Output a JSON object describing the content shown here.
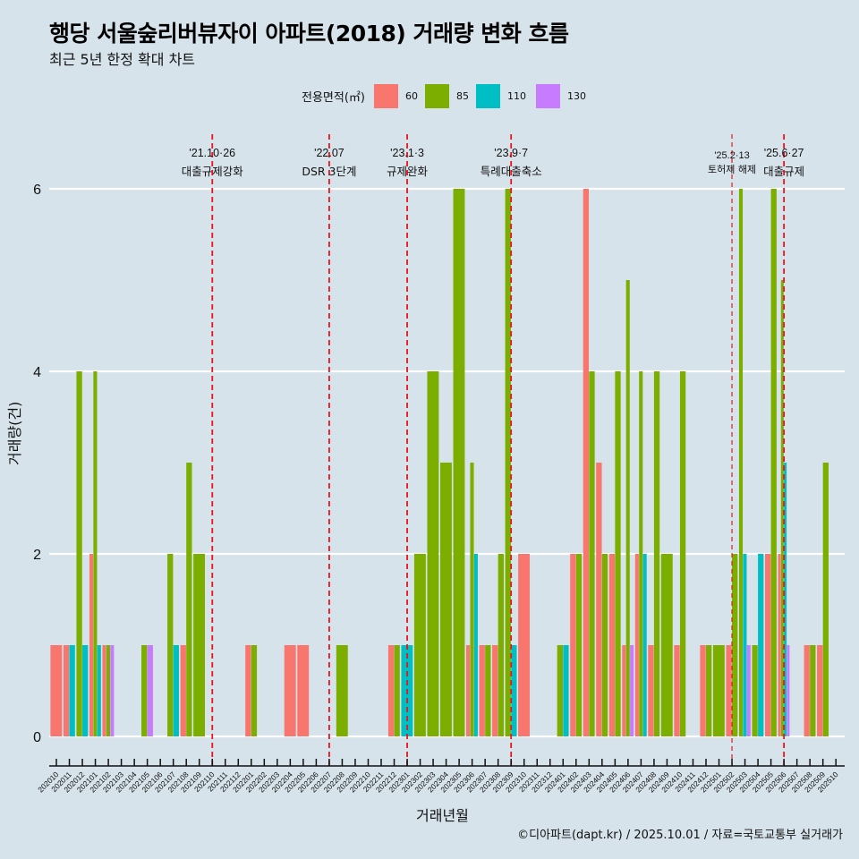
{
  "title": "행당 서울숲리버뷰자이 아파트(2018) 거래량 변화 흐름",
  "subtitle": "최근 5년 한정 확대 차트",
  "footer": "©디아파트(dapt.kr) / 2025.10.01 / 자료=국토교통부 실거래가",
  "chart_data": {
    "type": "bar",
    "title": "행당 서울숲리버뷰자이 아파트(2018) 거래량 변화 흐름",
    "subtitle": "최근 5년 한정 확대 차트",
    "xlabel": "거래년월",
    "ylabel": "거래량(건)",
    "ylim": [
      0,
      6
    ],
    "yticks": [
      0,
      2,
      4,
      6
    ],
    "grid": true,
    "legend": {
      "title": "전용면적(㎡)",
      "position": "top"
    },
    "series": [
      {
        "name": "60",
        "color": "#f8766d"
      },
      {
        "name": "85",
        "color": "#7cae00"
      },
      {
        "name": "110",
        "color": "#00bfc4"
      },
      {
        "name": "130",
        "color": "#c77cff"
      }
    ],
    "categories": [
      "202010",
      "202011",
      "202012",
      "202101",
      "202102",
      "202103",
      "202104",
      "202105",
      "202106",
      "202107",
      "202108",
      "202109",
      "202110",
      "202111",
      "202112",
      "202201",
      "202202",
      "202203",
      "202204",
      "202205",
      "202206",
      "202207",
      "202208",
      "202209",
      "202210",
      "202211",
      "202212",
      "202301",
      "202302",
      "202303",
      "202304",
      "202305",
      "202306",
      "202307",
      "202308",
      "202309",
      "202310",
      "202311",
      "202312",
      "202401",
      "202402",
      "202403",
      "202404",
      "202405",
      "202406",
      "202407",
      "202408",
      "202409",
      "202410",
      "202411",
      "202412",
      "202501",
      "202502",
      "202503",
      "202504",
      "202505",
      "202506",
      "202507",
      "202508",
      "202509",
      "202510"
    ],
    "values": {
      "202010": {
        "60": 1
      },
      "202011": {
        "60": 1,
        "110": 1
      },
      "202012": {
        "85": 4,
        "110": 1
      },
      "202101": {
        "60": 2,
        "85": 4,
        "110": 1
      },
      "202102": {
        "60": 1,
        "85": 1,
        "130": 1
      },
      "202105": {
        "85": 1,
        "130": 1
      },
      "202107": {
        "85": 2,
        "110": 1
      },
      "202108": {
        "60": 1,
        "85": 3
      },
      "202109": {
        "85": 2
      },
      "202201": {
        "60": 1,
        "85": 1
      },
      "202204": {
        "60": 1
      },
      "202205": {
        "60": 1
      },
      "202208": {
        "85": 1
      },
      "202212": {
        "60": 1,
        "85": 1
      },
      "202301": {
        "110": 1
      },
      "202302": {
        "85": 2
      },
      "202303": {
        "85": 4
      },
      "202304": {
        "85": 3
      },
      "202305": {
        "85": 6
      },
      "202306": {
        "60": 1,
        "85": 3,
        "110": 2
      },
      "202307": {
        "60": 1,
        "85": 1
      },
      "202308": {
        "60": 1,
        "85": 2
      },
      "202309": {
        "85": 6,
        "110": 1
      },
      "202310": {
        "60": 2
      },
      "202401": {
        "85": 1,
        "110": 1
      },
      "202402": {
        "60": 2,
        "85": 2
      },
      "202403": {
        "60": 6,
        "85": 4
      },
      "202404": {
        "60": 3,
        "85": 2
      },
      "202405": {
        "60": 2,
        "85": 4
      },
      "202406": {
        "60": 1,
        "85": 5,
        "130": 1
      },
      "202407": {
        "60": 2,
        "85": 4,
        "110": 2
      },
      "202408": {
        "60": 1,
        "85": 4
      },
      "202409": {
        "85": 2
      },
      "202410": {
        "60": 1,
        "85": 4
      },
      "202412": {
        "60": 1,
        "85": 1
      },
      "202501": {
        "85": 1
      },
      "202502": {
        "60": 1,
        "85": 2
      },
      "202503": {
        "85": 6,
        "110": 2,
        "130": 1
      },
      "202504": {
        "85": 1,
        "110": 2
      },
      "202505": {
        "60": 2,
        "85": 6
      },
      "202506": {
        "60": 2,
        "85": 5,
        "110": 3,
        "130": 1
      },
      "202508": {
        "60": 1,
        "85": 1
      },
      "202509": {
        "60": 1,
        "85": 3
      }
    },
    "annotations": [
      {
        "month": "202110",
        "date": "'21.10·26",
        "text": "대출규제강화",
        "style": "major"
      },
      {
        "month": "202207",
        "date": "'22.07",
        "text": "DSR 3단계",
        "style": "major"
      },
      {
        "month": "202301",
        "date": "'23.1·3",
        "text": "규제완화",
        "style": "major"
      },
      {
        "month": "202309",
        "date": "'23.9·7",
        "text": "특례대출축소",
        "style": "major"
      },
      {
        "month": "202502",
        "date": "'25.2·13",
        "text": "토허제 해제",
        "style": "minor"
      },
      {
        "month": "202506",
        "date": "'25.6·27",
        "text": "대출규제",
        "style": "major"
      }
    ],
    "annotation_color": "#e8141e"
  }
}
